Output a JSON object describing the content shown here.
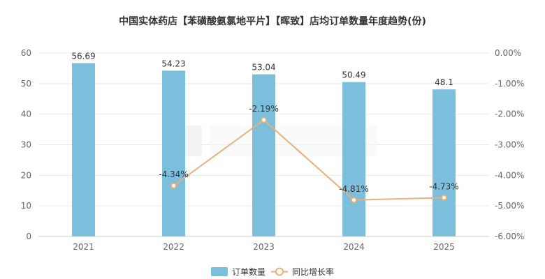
{
  "chart_data": {
    "type": "bar",
    "title": "中国实体药店【苯磺酸氨氯地平片】【晖致】店均订单数量年度趋势(份)",
    "categories": [
      "2021",
      "2022",
      "2023",
      "2024",
      "2025"
    ],
    "series": [
      {
        "name": "订单数量",
        "type": "bar",
        "axis": "left",
        "values": [
          56.69,
          54.23,
          53.04,
          50.49,
          48.1
        ],
        "labels": [
          "56.69",
          "54.23",
          "53.04",
          "50.49",
          "48.1"
        ],
        "color": "#7bbfdc"
      },
      {
        "name": "同比增长率",
        "type": "line",
        "axis": "right",
        "values": [
          null,
          -4.34,
          -2.19,
          -4.81,
          -4.73
        ],
        "labels": [
          "",
          "-4.34%",
          "-2.19%",
          "-4.81%",
          "-4.73%"
        ],
        "color": "#e8b07a"
      }
    ],
    "y_left": {
      "min": 0,
      "max": 60,
      "ticks": [
        "0",
        "10",
        "20",
        "30",
        "40",
        "50",
        "60"
      ]
    },
    "y_right": {
      "min": -6,
      "max": 0,
      "ticks": [
        "-6.00%",
        "-5.00%",
        "-4.00%",
        "-3.00%",
        "-2.00%",
        "-1.00%",
        "0.00%"
      ]
    },
    "grid": true,
    "legend_position": "bottom"
  }
}
